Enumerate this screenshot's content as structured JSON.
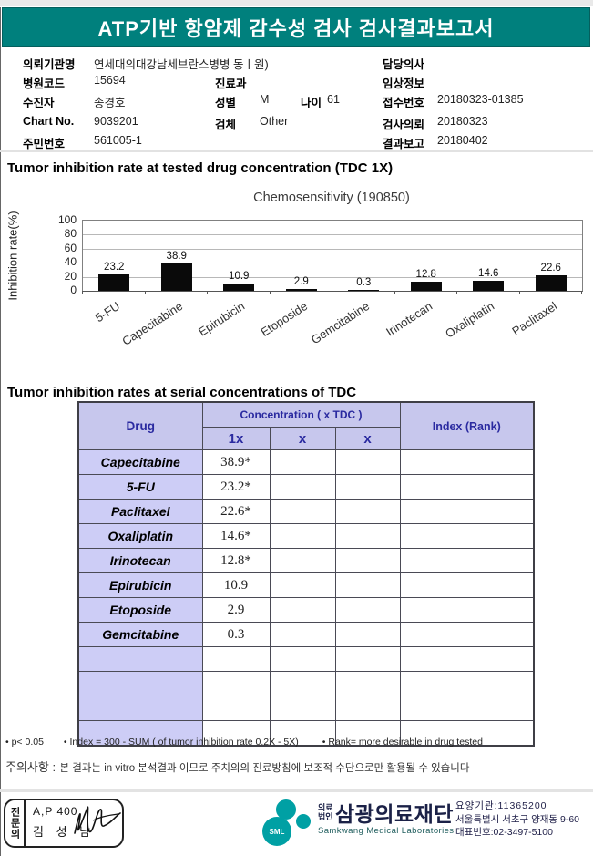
{
  "title": "ATP기반 항암제 감수성 검사 검사결과보고서",
  "patient": {
    "org_label": "의뢰기관명",
    "org": "연세대의대강남세브란스병병 동ㅣ원)",
    "hosp_code_label": "병원코드",
    "hosp_code": "15694",
    "name_label": "수진자",
    "name": "송경호",
    "chart_label": "Chart No.",
    "chart": "9039201",
    "rrn_label": "주민번호",
    "rrn": "561005-1",
    "dept_label": "진료과",
    "dept": "",
    "sex_label": "성별",
    "sex": "M",
    "age_label": "나이",
    "age": "61",
    "specimen_label": "검체",
    "specimen": "Other",
    "doctor_label": "담당의사",
    "doctor": "",
    "clinical_label": "임상정보",
    "clinical": "",
    "receipt_label": "접수번호",
    "receipt": "20180323-01385",
    "request_label": "검사의뢰",
    "request": "20180323",
    "report_label": "결과보고",
    "report": "20180402"
  },
  "sections": {
    "chart_section_title": "Tumor inhibition rate at tested drug concentration (TDC 1X)",
    "table_section_title": "Tumor inhibition rates at serial concentrations of TDC"
  },
  "chart_data": {
    "type": "bar",
    "title": "Chemosensitivity (190850)",
    "ylabel": "Inhibition rate(%)",
    "categories": [
      "5-FU",
      "Capecitabine",
      "Epirubicin",
      "Etoposide",
      "Gemcitabine",
      "Irinotecan",
      "Oxaliplatin",
      "Paclitaxel"
    ],
    "values": [
      23.2,
      38.9,
      10.9,
      2.9,
      0.3,
      12.8,
      14.6,
      22.6
    ],
    "ylim": [
      0,
      100
    ],
    "yticks": [
      100,
      80,
      60,
      40,
      20,
      0
    ],
    "grid": true,
    "bar_color": "#0a0a0a",
    "legend": "none"
  },
  "table": {
    "header": {
      "drug": "Drug",
      "concentration": "Concentration ( x TDC )",
      "index": "Index (Rank)",
      "sub": [
        "1x",
        "x",
        "x"
      ]
    },
    "rows": [
      {
        "drug": "Capecitabine",
        "c1": "38.9*",
        "c2": "",
        "c3": "",
        "index": ""
      },
      {
        "drug": "5-FU",
        "c1": "23.2*",
        "c2": "",
        "c3": "",
        "index": ""
      },
      {
        "drug": "Paclitaxel",
        "c1": "22.6*",
        "c2": "",
        "c3": "",
        "index": ""
      },
      {
        "drug": "Oxaliplatin",
        "c1": "14.6*",
        "c2": "",
        "c3": "",
        "index": ""
      },
      {
        "drug": "Irinotecan",
        "c1": "12.8*",
        "c2": "",
        "c3": "",
        "index": ""
      },
      {
        "drug": "Epirubicin",
        "c1": "10.9",
        "c2": "",
        "c3": "",
        "index": ""
      },
      {
        "drug": "Etoposide",
        "c1": "2.9",
        "c2": "",
        "c3": "",
        "index": ""
      },
      {
        "drug": "Gemcitabine",
        "c1": "0.3",
        "c2": "",
        "c3": "",
        "index": ""
      },
      {
        "drug": "",
        "c1": "",
        "c2": "",
        "c3": "",
        "index": ""
      },
      {
        "drug": "",
        "c1": "",
        "c2": "",
        "c3": "",
        "index": ""
      },
      {
        "drug": "",
        "c1": "",
        "c2": "",
        "c3": "",
        "index": ""
      },
      {
        "drug": "",
        "c1": "",
        "c2": "",
        "c3": "",
        "index": ""
      }
    ]
  },
  "footnotes": [
    "• p< 0.05",
    "• Index = 300 - SUM ( of tumor inhibition rate 0.2X  -  5X)",
    "• Rank= more desirable in drug tested"
  ],
  "notice": {
    "label": "주의사항 :",
    "text": "본 결과는 in vitro 분석결과 이므로 주치의의 진료방침에 보조적 수단으로만 활용될 수 있습니다"
  },
  "footer": {
    "stamp": {
      "side_label": "전문의",
      "line1": "A,P 400",
      "line2": "김 성 남"
    },
    "logo": {
      "sml": "SML",
      "small_top": "의료",
      "small_bottom": "법인",
      "name_ko": "삼광의료재단",
      "name_en": "Samkwang Medical Laboratories"
    },
    "contact": [
      "요양기관:11365200",
      "서울특별시 서초구 양재동 9-60",
      "대표번호:02-3497-5100"
    ]
  },
  "colors": {
    "banner_teal": "#00807d",
    "logo_teal": "#00a0a4",
    "table_header_bg": "#c7c7ed",
    "table_header_text": "#2a2aa0",
    "drug_cell_bg": "#cdcdf6",
    "bar_color": "#0a0a0a"
  }
}
